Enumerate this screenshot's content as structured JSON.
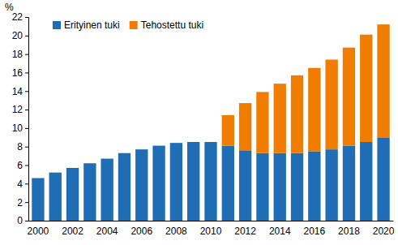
{
  "chart_data": {
    "type": "bar",
    "stacked": true,
    "grid": false,
    "legend": "upper left",
    "ylabel": "%",
    "categories": [
      "2000",
      null,
      "2002",
      null,
      "2004",
      null,
      "2006",
      null,
      "2008",
      null,
      "2010",
      null,
      "2012",
      null,
      "2014",
      null,
      "2016",
      null,
      "2018",
      null,
      "2020"
    ],
    "series": [
      {
        "name": "Erityinen tuki",
        "color": "#1f6db5",
        "values": [
          4.6,
          5.2,
          5.7,
          6.2,
          6.7,
          7.3,
          7.7,
          8.1,
          8.4,
          8.5,
          8.5,
          8.1,
          7.6,
          7.3,
          7.3,
          7.3,
          7.5,
          7.7,
          8.1,
          8.5,
          9.0
        ]
      },
      {
        "name": "Tehostettu tuki",
        "color": "#f07c00",
        "values": [
          null,
          null,
          null,
          null,
          null,
          null,
          null,
          null,
          null,
          null,
          null,
          3.3,
          5.1,
          6.6,
          7.5,
          8.4,
          9.0,
          9.7,
          10.6,
          11.6,
          12.2
        ]
      }
    ],
    "ylim": [
      0,
      22
    ],
    "yticks": [
      0,
      2,
      4,
      6,
      8,
      10,
      12,
      14,
      16,
      18,
      20,
      22
    ]
  }
}
